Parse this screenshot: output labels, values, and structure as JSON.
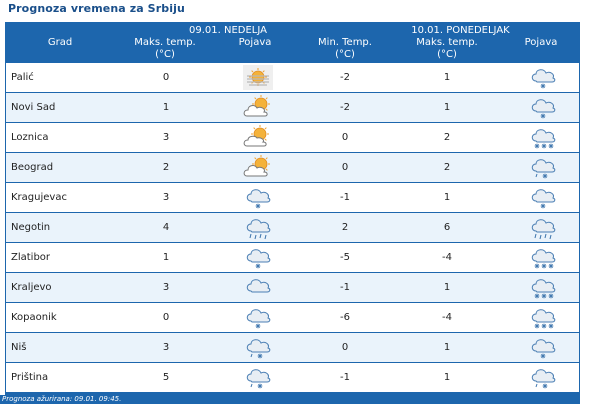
{
  "title": "Prognoza vremena za Srbiju",
  "header": {
    "city": "Grad",
    "day1": "09.01. NEDELJA",
    "day2": "10.01. PONEDELJAK",
    "max_temp": "Maks. temp.",
    "min_temp": "Min. Temp.",
    "max_temp2": "Maks. temp.",
    "unit": "(°C)",
    "phenomenon": "Pojava"
  },
  "rows": [
    {
      "city": "Palić",
      "d1_max": "0",
      "d1_icon": "fog-sun-icon",
      "d2_min": "-2",
      "d2_max": "1",
      "d2_icon": "snow-cloud-icon"
    },
    {
      "city": "Novi Sad",
      "d1_max": "1",
      "d1_icon": "partly-cloudy-icon",
      "d2_min": "-2",
      "d2_max": "1",
      "d2_icon": "snow-cloud-icon"
    },
    {
      "city": "Loznica",
      "d1_max": "3",
      "d1_icon": "sun-cloud-icon",
      "d2_min": "0",
      "d2_max": "2",
      "d2_icon": "heavy-snow-cloud-icon"
    },
    {
      "city": "Beograd",
      "d1_max": "2",
      "d1_icon": "partly-cloudy-icon",
      "d2_min": "0",
      "d2_max": "2",
      "d2_icon": "sleet-cloud-icon"
    },
    {
      "city": "Kragujevac",
      "d1_max": "3",
      "d1_icon": "snow-cloud-icon",
      "d2_min": "-1",
      "d2_max": "1",
      "d2_icon": "snow-cloud-icon"
    },
    {
      "city": "Negotin",
      "d1_max": "4",
      "d1_icon": "rain-cloud-icon",
      "d2_min": "2",
      "d2_max": "6",
      "d2_icon": "rain-cloud-icon"
    },
    {
      "city": "Zlatibor",
      "d1_max": "1",
      "d1_icon": "snow-cloud-icon",
      "d2_min": "-5",
      "d2_max": "-4",
      "d2_icon": "heavy-snow-cloud-icon"
    },
    {
      "city": "Kraljevo",
      "d1_max": "3",
      "d1_icon": "cloud-icon",
      "d2_min": "-1",
      "d2_max": "1",
      "d2_icon": "heavy-snow-cloud-icon"
    },
    {
      "city": "Kopaonik",
      "d1_max": "0",
      "d1_icon": "snow-cloud-icon",
      "d2_min": "-6",
      "d2_max": "-4",
      "d2_icon": "heavy-snow-cloud-icon"
    },
    {
      "city": "Niš",
      "d1_max": "3",
      "d1_icon": "sleet-cloud-icon",
      "d2_min": "0",
      "d2_max": "1",
      "d2_icon": "snow-cloud-icon"
    },
    {
      "city": "Priština",
      "d1_max": "5",
      "d1_icon": "sleet-cloud-icon",
      "d2_min": "-1",
      "d2_max": "1",
      "d2_icon": "sleet-cloud-icon"
    }
  ],
  "footer": "Prognoza ažurirana:  09.01.  09:45.",
  "colors": {
    "header_bg": "#1d66ad",
    "row_alt": "#eaf3fb",
    "title": "#1a4f8a"
  }
}
